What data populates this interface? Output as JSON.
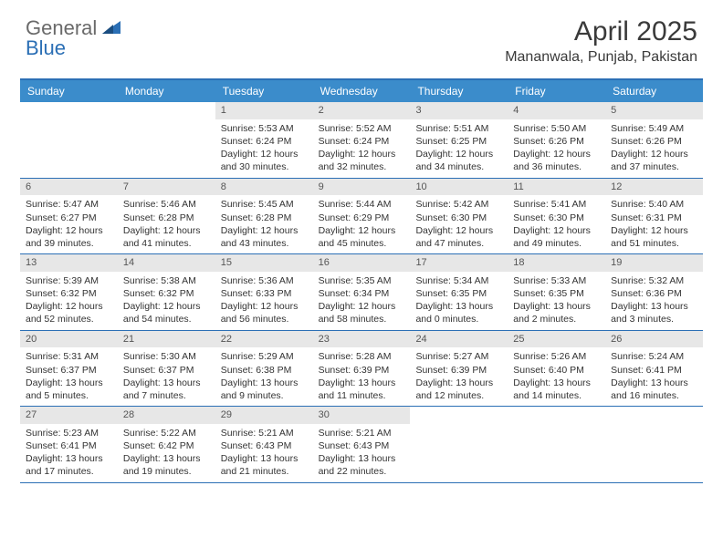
{
  "logo": {
    "part1": "General",
    "part2": "Blue"
  },
  "title": "April 2025",
  "location": "Mananwala, Punjab, Pakistan",
  "colors": {
    "header_bar": "#3b8ccb",
    "header_border": "#2b6fb5",
    "day_num_bg": "#e7e7e7",
    "logo_gray": "#6a6a6a",
    "logo_blue": "#2b6fb5",
    "text": "#333333"
  },
  "day_names": [
    "Sunday",
    "Monday",
    "Tuesday",
    "Wednesday",
    "Thursday",
    "Friday",
    "Saturday"
  ],
  "weeks": [
    [
      {
        "n": "",
        "empty": true
      },
      {
        "n": "",
        "empty": true
      },
      {
        "n": "1",
        "sunrise": "Sunrise: 5:53 AM",
        "sunset": "Sunset: 6:24 PM",
        "day1": "Daylight: 12 hours",
        "day2": "and 30 minutes."
      },
      {
        "n": "2",
        "sunrise": "Sunrise: 5:52 AM",
        "sunset": "Sunset: 6:24 PM",
        "day1": "Daylight: 12 hours",
        "day2": "and 32 minutes."
      },
      {
        "n": "3",
        "sunrise": "Sunrise: 5:51 AM",
        "sunset": "Sunset: 6:25 PM",
        "day1": "Daylight: 12 hours",
        "day2": "and 34 minutes."
      },
      {
        "n": "4",
        "sunrise": "Sunrise: 5:50 AM",
        "sunset": "Sunset: 6:26 PM",
        "day1": "Daylight: 12 hours",
        "day2": "and 36 minutes."
      },
      {
        "n": "5",
        "sunrise": "Sunrise: 5:49 AM",
        "sunset": "Sunset: 6:26 PM",
        "day1": "Daylight: 12 hours",
        "day2": "and 37 minutes."
      }
    ],
    [
      {
        "n": "6",
        "sunrise": "Sunrise: 5:47 AM",
        "sunset": "Sunset: 6:27 PM",
        "day1": "Daylight: 12 hours",
        "day2": "and 39 minutes."
      },
      {
        "n": "7",
        "sunrise": "Sunrise: 5:46 AM",
        "sunset": "Sunset: 6:28 PM",
        "day1": "Daylight: 12 hours",
        "day2": "and 41 minutes."
      },
      {
        "n": "8",
        "sunrise": "Sunrise: 5:45 AM",
        "sunset": "Sunset: 6:28 PM",
        "day1": "Daylight: 12 hours",
        "day2": "and 43 minutes."
      },
      {
        "n": "9",
        "sunrise": "Sunrise: 5:44 AM",
        "sunset": "Sunset: 6:29 PM",
        "day1": "Daylight: 12 hours",
        "day2": "and 45 minutes."
      },
      {
        "n": "10",
        "sunrise": "Sunrise: 5:42 AM",
        "sunset": "Sunset: 6:30 PM",
        "day1": "Daylight: 12 hours",
        "day2": "and 47 minutes."
      },
      {
        "n": "11",
        "sunrise": "Sunrise: 5:41 AM",
        "sunset": "Sunset: 6:30 PM",
        "day1": "Daylight: 12 hours",
        "day2": "and 49 minutes."
      },
      {
        "n": "12",
        "sunrise": "Sunrise: 5:40 AM",
        "sunset": "Sunset: 6:31 PM",
        "day1": "Daylight: 12 hours",
        "day2": "and 51 minutes."
      }
    ],
    [
      {
        "n": "13",
        "sunrise": "Sunrise: 5:39 AM",
        "sunset": "Sunset: 6:32 PM",
        "day1": "Daylight: 12 hours",
        "day2": "and 52 minutes."
      },
      {
        "n": "14",
        "sunrise": "Sunrise: 5:38 AM",
        "sunset": "Sunset: 6:32 PM",
        "day1": "Daylight: 12 hours",
        "day2": "and 54 minutes."
      },
      {
        "n": "15",
        "sunrise": "Sunrise: 5:36 AM",
        "sunset": "Sunset: 6:33 PM",
        "day1": "Daylight: 12 hours",
        "day2": "and 56 minutes."
      },
      {
        "n": "16",
        "sunrise": "Sunrise: 5:35 AM",
        "sunset": "Sunset: 6:34 PM",
        "day1": "Daylight: 12 hours",
        "day2": "and 58 minutes."
      },
      {
        "n": "17",
        "sunrise": "Sunrise: 5:34 AM",
        "sunset": "Sunset: 6:35 PM",
        "day1": "Daylight: 13 hours",
        "day2": "and 0 minutes."
      },
      {
        "n": "18",
        "sunrise": "Sunrise: 5:33 AM",
        "sunset": "Sunset: 6:35 PM",
        "day1": "Daylight: 13 hours",
        "day2": "and 2 minutes."
      },
      {
        "n": "19",
        "sunrise": "Sunrise: 5:32 AM",
        "sunset": "Sunset: 6:36 PM",
        "day1": "Daylight: 13 hours",
        "day2": "and 3 minutes."
      }
    ],
    [
      {
        "n": "20",
        "sunrise": "Sunrise: 5:31 AM",
        "sunset": "Sunset: 6:37 PM",
        "day1": "Daylight: 13 hours",
        "day2": "and 5 minutes."
      },
      {
        "n": "21",
        "sunrise": "Sunrise: 5:30 AM",
        "sunset": "Sunset: 6:37 PM",
        "day1": "Daylight: 13 hours",
        "day2": "and 7 minutes."
      },
      {
        "n": "22",
        "sunrise": "Sunrise: 5:29 AM",
        "sunset": "Sunset: 6:38 PM",
        "day1": "Daylight: 13 hours",
        "day2": "and 9 minutes."
      },
      {
        "n": "23",
        "sunrise": "Sunrise: 5:28 AM",
        "sunset": "Sunset: 6:39 PM",
        "day1": "Daylight: 13 hours",
        "day2": "and 11 minutes."
      },
      {
        "n": "24",
        "sunrise": "Sunrise: 5:27 AM",
        "sunset": "Sunset: 6:39 PM",
        "day1": "Daylight: 13 hours",
        "day2": "and 12 minutes."
      },
      {
        "n": "25",
        "sunrise": "Sunrise: 5:26 AM",
        "sunset": "Sunset: 6:40 PM",
        "day1": "Daylight: 13 hours",
        "day2": "and 14 minutes."
      },
      {
        "n": "26",
        "sunrise": "Sunrise: 5:24 AM",
        "sunset": "Sunset: 6:41 PM",
        "day1": "Daylight: 13 hours",
        "day2": "and 16 minutes."
      }
    ],
    [
      {
        "n": "27",
        "sunrise": "Sunrise: 5:23 AM",
        "sunset": "Sunset: 6:41 PM",
        "day1": "Daylight: 13 hours",
        "day2": "and 17 minutes."
      },
      {
        "n": "28",
        "sunrise": "Sunrise: 5:22 AM",
        "sunset": "Sunset: 6:42 PM",
        "day1": "Daylight: 13 hours",
        "day2": "and 19 minutes."
      },
      {
        "n": "29",
        "sunrise": "Sunrise: 5:21 AM",
        "sunset": "Sunset: 6:43 PM",
        "day1": "Daylight: 13 hours",
        "day2": "and 21 minutes."
      },
      {
        "n": "30",
        "sunrise": "Sunrise: 5:21 AM",
        "sunset": "Sunset: 6:43 PM",
        "day1": "Daylight: 13 hours",
        "day2": "and 22 minutes."
      },
      {
        "n": "",
        "empty": true
      },
      {
        "n": "",
        "empty": true
      },
      {
        "n": "",
        "empty": true
      }
    ]
  ]
}
